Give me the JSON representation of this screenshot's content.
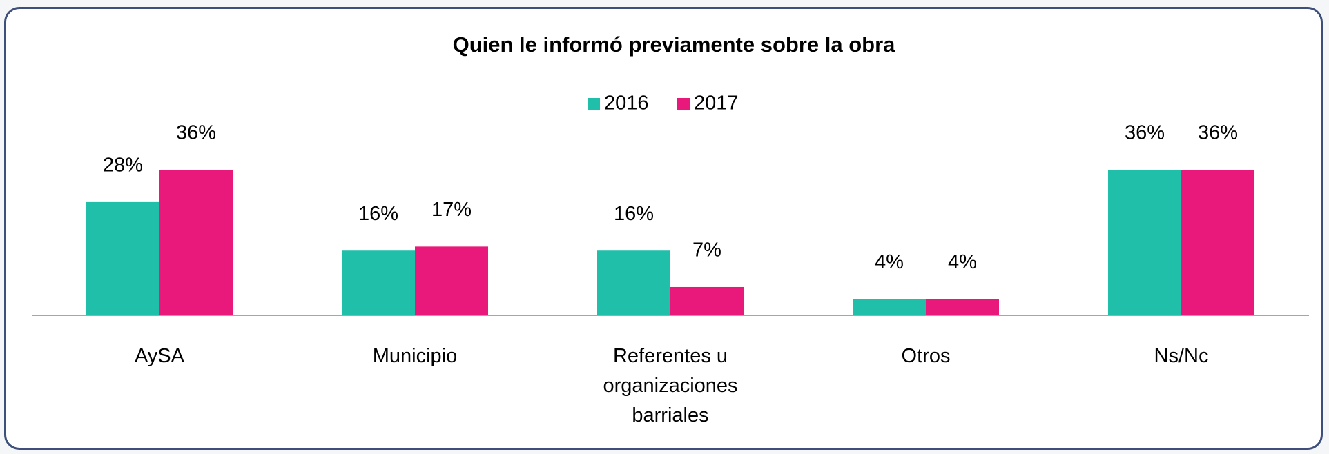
{
  "chart_data": {
    "type": "bar",
    "title": "Quien le informó previamente sobre la obra",
    "categories": [
      "AySA",
      "Municipio",
      "Referentes u organizaciones barriales",
      "Otros",
      "Ns/Nc"
    ],
    "series": [
      {
        "name": "2016",
        "color": "#1fbfaa",
        "values": [
          28,
          16,
          16,
          4,
          36
        ],
        "value_labels": [
          "28%",
          "16%",
          "16%",
          "4%",
          "36%"
        ]
      },
      {
        "name": "2017",
        "color": "#e8197a",
        "values": [
          36,
          17,
          7,
          4,
          36
        ],
        "value_labels": [
          "36%",
          "17%",
          "7%",
          "4%",
          "36%"
        ]
      }
    ],
    "legend": "top"
  }
}
